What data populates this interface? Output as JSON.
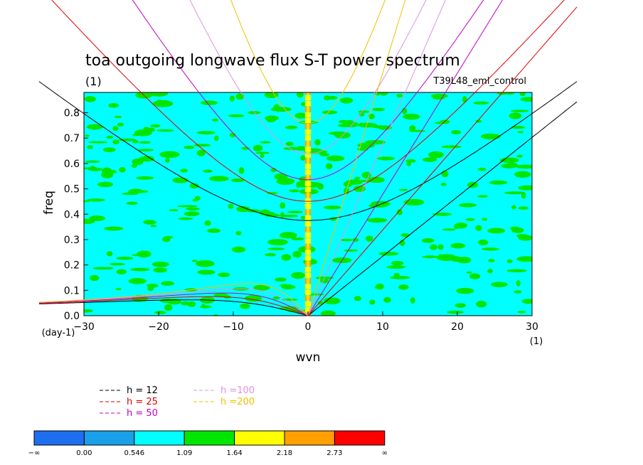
{
  "chart_data": {
    "type": "heatmap",
    "title": "toa outgoing longwave flux S-T power spectrum",
    "subtitle_left": "(1)",
    "subtitle_right": "T39L48_eml_control",
    "xlabel": "wvn",
    "ylabel": "freq",
    "x_unit": "(1)",
    "y_unit": "(day-1)",
    "xlim": [
      -30,
      30
    ],
    "ylim": [
      0,
      0.88
    ],
    "x_ticks": [
      "−30",
      "−20",
      "−10",
      "0",
      "10",
      "20",
      "30"
    ],
    "x_tick_values": [
      -30,
      -20,
      -10,
      0,
      10,
      20,
      30
    ],
    "y_ticks": [
      "0.0",
      "0.1",
      "0.2",
      "0.3",
      "0.4",
      "0.5",
      "0.6",
      "0.7",
      "0.8"
    ],
    "y_tick_values": [
      0,
      0.1,
      0.2,
      0.3,
      0.4,
      0.5,
      0.6,
      0.7,
      0.8
    ],
    "dispersion_curves": [
      {
        "label": "h = 12",
        "h": 12,
        "color": "#000000"
      },
      {
        "label": "h = 25",
        "h": 25,
        "color": "#e00000"
      },
      {
        "label": "h = 50",
        "h": 50,
        "color": "#c000c0"
      },
      {
        "label": "h =100",
        "h": 100,
        "color": "#e090e0"
      },
      {
        "label": "h =200",
        "h": 200,
        "color": "#f0c000"
      }
    ],
    "colorbar": {
      "labels": [
        "−∞",
        "0.00",
        "0.546",
        "1.09",
        "1.64",
        "2.18",
        "2.73",
        "∞"
      ],
      "colors": [
        "#1e6ef0",
        "#1aa0e8",
        "#00ffff",
        "#00e600",
        "#ffff00",
        "#ffa000",
        "#ff0000"
      ]
    }
  }
}
